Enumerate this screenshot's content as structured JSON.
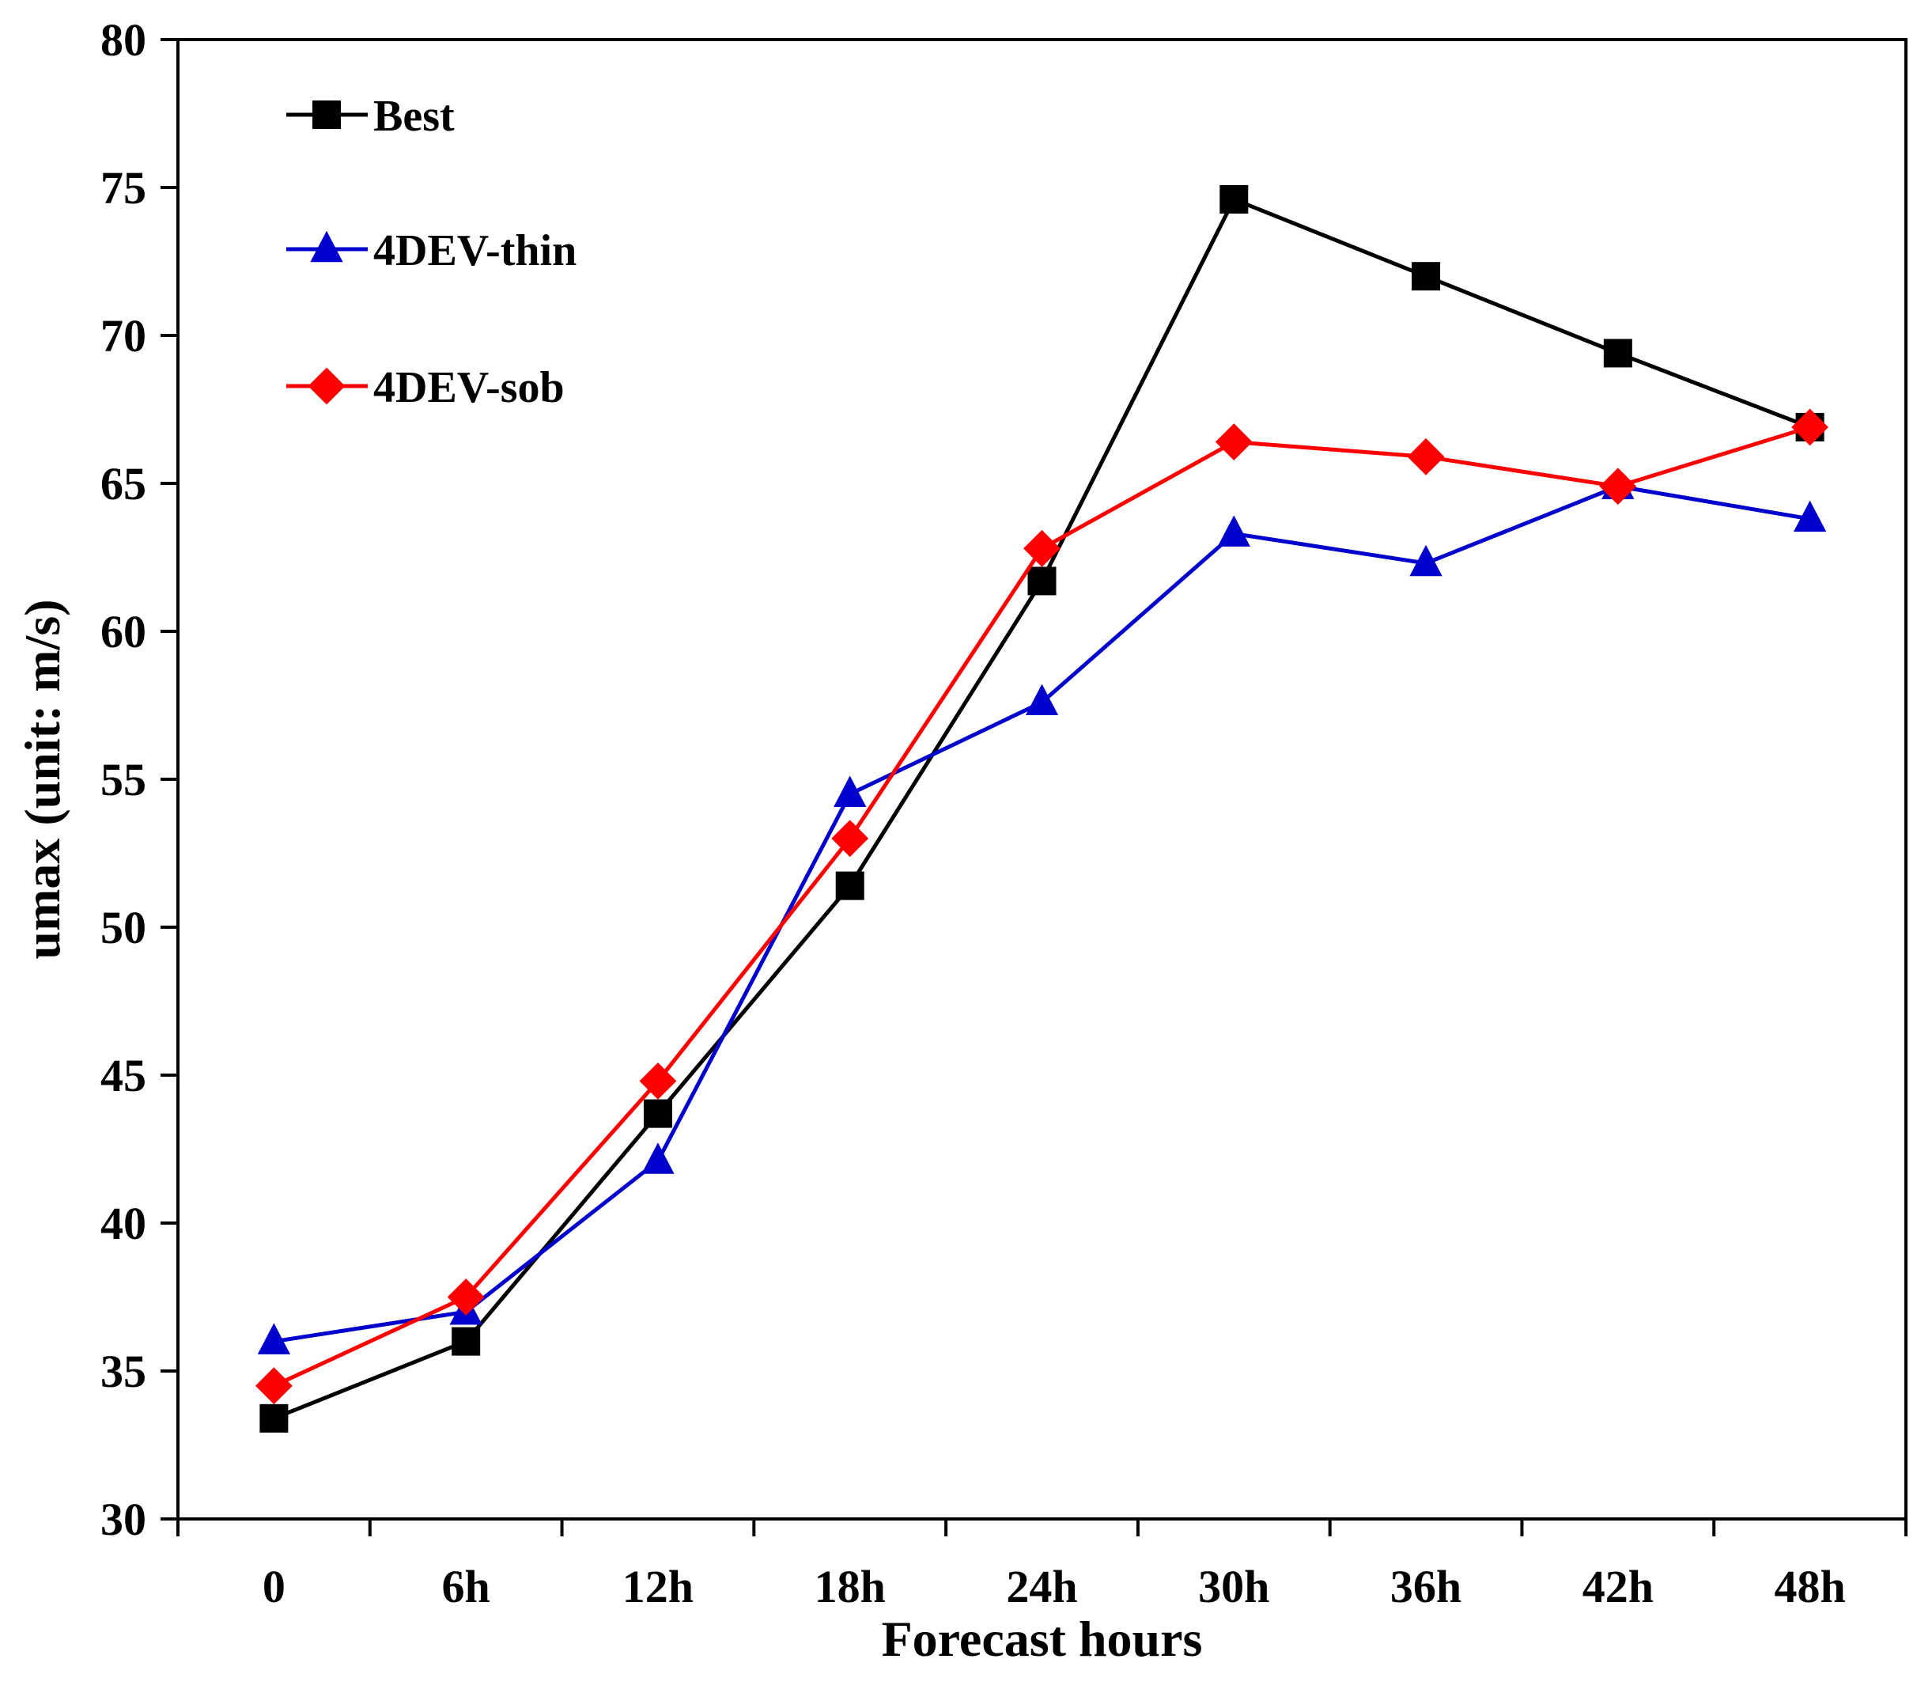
{
  "chart_data": {
    "type": "line",
    "title": "",
    "xlabel": "Forecast hours",
    "ylabel": "umax (unit: m/s)",
    "categories": [
      "0",
      "6h",
      "12h",
      "18h",
      "24h",
      "30h",
      "36h",
      "42h",
      "48h"
    ],
    "ylim": [
      30,
      80
    ],
    "yticks": [
      30,
      35,
      40,
      45,
      50,
      55,
      60,
      65,
      70,
      75,
      80
    ],
    "grid": false,
    "legend_position": "top-left",
    "series": [
      {
        "name": "Best",
        "color": "#000000",
        "marker": "square",
        "values": [
          33.4,
          36.0,
          43.7,
          51.4,
          61.7,
          74.6,
          72.0,
          69.4,
          66.9
        ]
      },
      {
        "name": "4DEV-thin",
        "color": "#0000cc",
        "marker": "triangle",
        "values": [
          36.0,
          37.0,
          42.1,
          54.5,
          57.6,
          63.3,
          62.3,
          64.9,
          63.8
        ]
      },
      {
        "name": "4DEV-sob",
        "color": "#ff0000",
        "marker": "diamond",
        "values": [
          34.5,
          37.5,
          44.8,
          53.0,
          62.8,
          66.4,
          65.9,
          64.9,
          66.9
        ]
      }
    ]
  }
}
